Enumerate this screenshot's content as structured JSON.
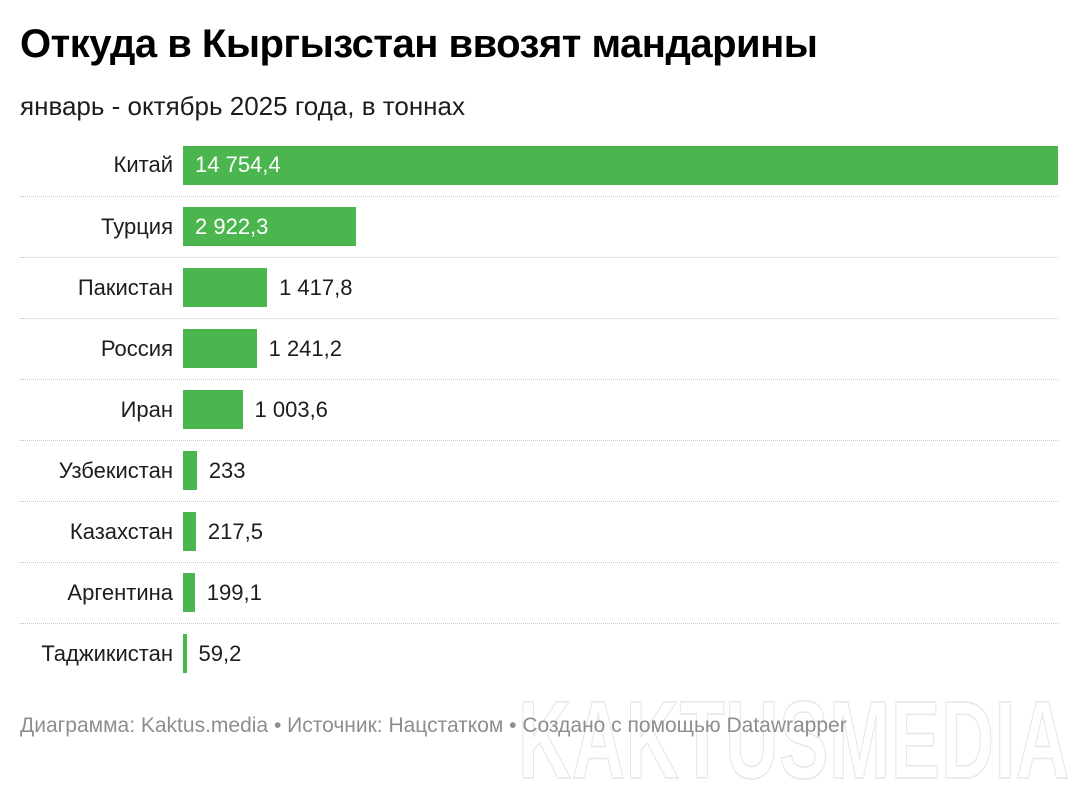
{
  "header": {
    "title": "Откуда в Кыргызстан ввозят мандарины",
    "subtitle": "январь - октябрь 2025 года, в тоннах"
  },
  "footer": {
    "text": "Диаграмма: Kaktus.media • Источник: Нацстатком • Создано с помощью Datawrapper"
  },
  "watermark": {
    "text": "KAKTUSMEDIA"
  },
  "colors": {
    "bar": "#4bb54e",
    "value_inside": "#ffffff",
    "value_outside": "#1d1d1d",
    "separator": "#c7c7c7",
    "footer_text": "#8e8e8e",
    "watermark_stroke": "#e7e7e7",
    "background": "#ffffff"
  },
  "chart_data": {
    "type": "bar",
    "orientation": "horizontal",
    "title": "Откуда в Кыргызстан ввозят мандарины",
    "subtitle": "январь - октябрь 2025 года, в тоннах",
    "unit": "тонн",
    "xlabel": "",
    "ylabel": "",
    "xlim": [
      0,
      14754.4
    ],
    "grid": false,
    "legend": false,
    "categories": [
      "Китай",
      "Турция",
      "Пакистан",
      "Россия",
      "Иран",
      "Узбекистан",
      "Казахстан",
      "Аргентина",
      "Таджикистан"
    ],
    "values": [
      14754.4,
      2922.3,
      1417.8,
      1241.2,
      1003.6,
      233,
      217.5,
      199.1,
      59.2
    ],
    "value_labels": [
      "14 754,4",
      "2 922,3",
      "1 417,8",
      "1 241,2",
      "1 003,6",
      "233",
      "217,5",
      "199,1",
      "59,2"
    ],
    "value_label_position": [
      "inside",
      "inside",
      "outside",
      "outside",
      "outside",
      "outside",
      "outside",
      "outside",
      "outside"
    ],
    "row_separators": "dotted"
  }
}
